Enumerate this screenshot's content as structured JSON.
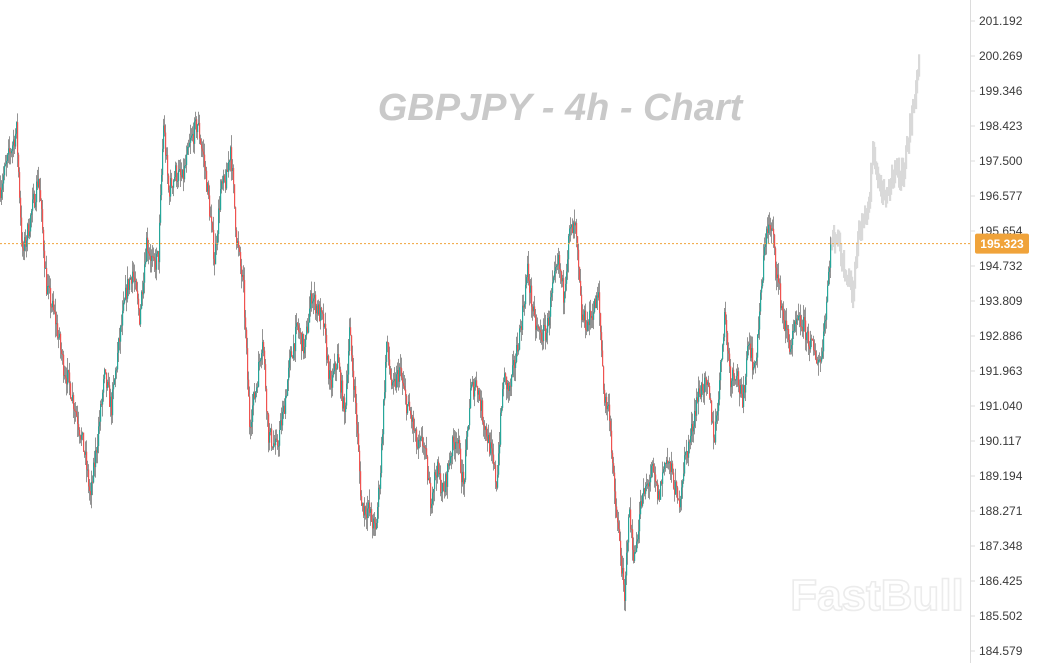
{
  "chart_data": {
    "type": "candlestick",
    "title": "GBPJPY - 4h - Chart",
    "symbol": "GBPJPY",
    "timeframe": "4h",
    "watermark": "FastBull",
    "current_price": "195.323",
    "y_ticks": [
      "201.192",
      "200.269",
      "199.346",
      "198.423",
      "197.500",
      "196.577",
      "195.654",
      "194.732",
      "193.809",
      "192.886",
      "191.963",
      "191.040",
      "190.117",
      "189.194",
      "188.271",
      "187.348",
      "186.425",
      "185.502",
      "184.579"
    ],
    "ylim": [
      184.5,
      201.6
    ],
    "grid": false,
    "colors": {
      "up": "#26a69a",
      "down": "#ef5350",
      "wick": "#7a7a7a",
      "projection": "#d9d9d9",
      "current_price": "#f0a33a",
      "axis_line": "#dcdcdc"
    },
    "price_path": [
      [
        0,
        196.8
      ],
      [
        8,
        197.6
      ],
      [
        16,
        198.3
      ],
      [
        22,
        195.0
      ],
      [
        30,
        196.0
      ],
      [
        38,
        197.1
      ],
      [
        46,
        194.2
      ],
      [
        55,
        193.3
      ],
      [
        63,
        192.1
      ],
      [
        70,
        191.5
      ],
      [
        78,
        190.6
      ],
      [
        84,
        189.8
      ],
      [
        90,
        188.6
      ],
      [
        97,
        190.2
      ],
      [
        104,
        191.8
      ],
      [
        111,
        191.0
      ],
      [
        118,
        192.6
      ],
      [
        126,
        194.1
      ],
      [
        132,
        194.6
      ],
      [
        139,
        193.4
      ],
      [
        146,
        195.4
      ],
      [
        153,
        194.7
      ],
      [
        158,
        195.0
      ],
      [
        163,
        198.5
      ],
      [
        168,
        196.7
      ],
      [
        175,
        197.2
      ],
      [
        182,
        197.0
      ],
      [
        190,
        198.0
      ],
      [
        197,
        198.5
      ],
      [
        203,
        197.6
      ],
      [
        208,
        196.5
      ],
      [
        214,
        194.9
      ],
      [
        220,
        196.7
      ],
      [
        226,
        197.0
      ],
      [
        230,
        197.9
      ],
      [
        236,
        195.5
      ],
      [
        243,
        194.1
      ],
      [
        249,
        190.6
      ],
      [
        256,
        191.6
      ],
      [
        262,
        192.9
      ],
      [
        268,
        190.3
      ],
      [
        276,
        189.9
      ],
      [
        283,
        190.9
      ],
      [
        290,
        192.3
      ],
      [
        297,
        193.1
      ],
      [
        304,
        192.5
      ],
      [
        311,
        194.0
      ],
      [
        317,
        193.6
      ],
      [
        323,
        193.2
      ],
      [
        330,
        191.5
      ],
      [
        337,
        192.3
      ],
      [
        344,
        190.8
      ],
      [
        349,
        193.0
      ],
      [
        355,
        191.1
      ],
      [
        361,
        188.4
      ],
      [
        368,
        188.3
      ],
      [
        375,
        187.7
      ],
      [
        380,
        189.4
      ],
      [
        386,
        192.7
      ],
      [
        392,
        191.4
      ],
      [
        399,
        192.0
      ],
      [
        405,
        191.2
      ],
      [
        411,
        190.7
      ],
      [
        417,
        189.9
      ],
      [
        423,
        190.1
      ],
      [
        430,
        188.6
      ],
      [
        436,
        189.4
      ],
      [
        443,
        188.7
      ],
      [
        450,
        189.8
      ],
      [
        456,
        190.3
      ],
      [
        463,
        188.9
      ],
      [
        470,
        191.4
      ],
      [
        476,
        191.7
      ],
      [
        482,
        190.8
      ],
      [
        489,
        190.0
      ],
      [
        496,
        189.0
      ],
      [
        503,
        191.8
      ],
      [
        509,
        191.4
      ],
      [
        515,
        192.3
      ],
      [
        521,
        193.3
      ],
      [
        527,
        194.6
      ],
      [
        534,
        193.2
      ],
      [
        540,
        192.9
      ],
      [
        546,
        193.0
      ],
      [
        552,
        194.1
      ],
      [
        558,
        194.8
      ],
      [
        563,
        194.0
      ],
      [
        569,
        195.6
      ],
      [
        575,
        195.7
      ],
      [
        581,
        193.4
      ],
      [
        587,
        193.2
      ],
      [
        593,
        193.6
      ],
      [
        598,
        193.9
      ],
      [
        604,
        191.2
      ],
      [
        609,
        190.9
      ],
      [
        614,
        188.6
      ],
      [
        620,
        187.2
      ],
      [
        624,
        185.8
      ],
      [
        628,
        188.3
      ],
      [
        634,
        187.0
      ],
      [
        640,
        188.4
      ],
      [
        646,
        188.9
      ],
      [
        652,
        189.3
      ],
      [
        658,
        188.6
      ],
      [
        665,
        189.7
      ],
      [
        672,
        189.2
      ],
      [
        678,
        188.4
      ],
      [
        684,
        189.6
      ],
      [
        690,
        190.2
      ],
      [
        696,
        191.2
      ],
      [
        702,
        191.6
      ],
      [
        708,
        191.4
      ],
      [
        714,
        190.2
      ],
      [
        720,
        192.0
      ],
      [
        724,
        193.5
      ],
      [
        730,
        191.8
      ],
      [
        736,
        192.0
      ],
      [
        742,
        191.0
      ],
      [
        748,
        192.9
      ],
      [
        754,
        191.9
      ],
      [
        760,
        193.8
      ],
      [
        766,
        195.8
      ],
      [
        772,
        195.6
      ],
      [
        778,
        194.2
      ],
      [
        784,
        193.2
      ],
      [
        790,
        192.6
      ],
      [
        796,
        193.2
      ],
      [
        802,
        193.2
      ],
      [
        808,
        192.8
      ],
      [
        814,
        192.4
      ],
      [
        820,
        192.2
      ],
      [
        826,
        193.8
      ],
      [
        830,
        195.3
      ]
    ],
    "projection_path": [
      [
        830,
        195.3
      ],
      [
        836,
        195.6
      ],
      [
        842,
        194.8
      ],
      [
        848,
        194.4
      ],
      [
        852,
        193.9
      ],
      [
        856,
        195.4
      ],
      [
        862,
        195.9
      ],
      [
        868,
        196.3
      ],
      [
        872,
        197.8
      ],
      [
        878,
        196.9
      ],
      [
        884,
        196.4
      ],
      [
        888,
        196.7
      ],
      [
        894,
        197.4
      ],
      [
        900,
        197.0
      ],
      [
        906,
        197.8
      ],
      [
        912,
        198.9
      ],
      [
        918,
        200.1
      ]
    ]
  }
}
